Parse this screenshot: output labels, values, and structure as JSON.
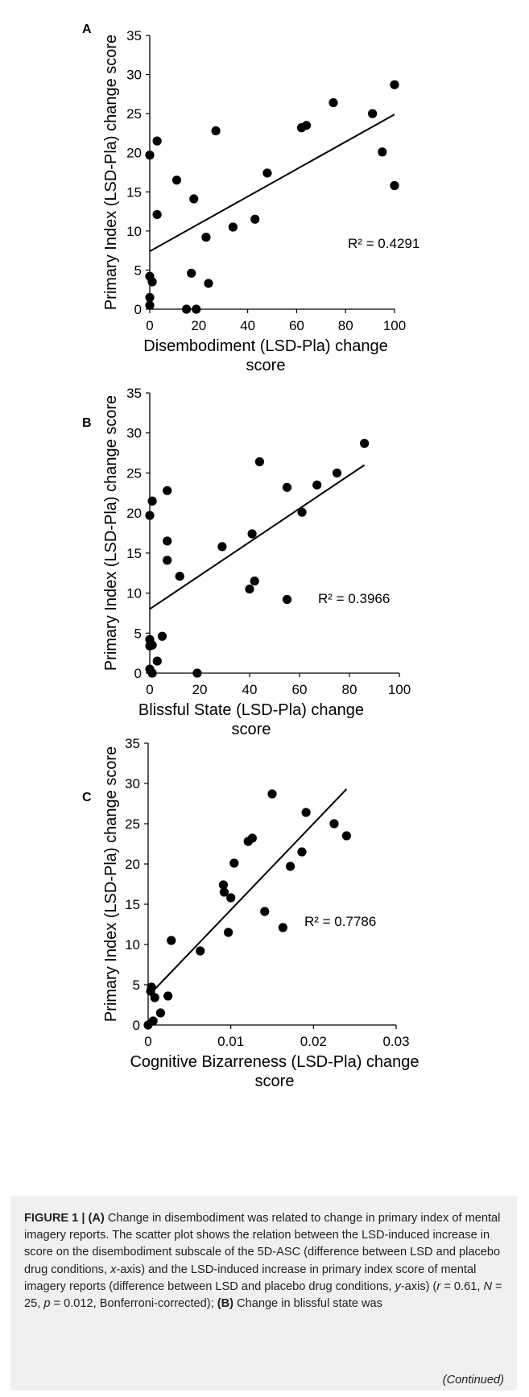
{
  "chart_data": [
    {
      "panel": "A",
      "type": "scatter",
      "xlabel": "Disembodiment (LSD-Pla) change score",
      "ylabel": "Primary Index (LSD-Pla) change score",
      "xlim": [
        0,
        100
      ],
      "ylim": [
        0,
        35
      ],
      "xticks": [
        "0",
        "20",
        "40",
        "60",
        "80",
        "100"
      ],
      "yticks": [
        "0",
        "5",
        "10",
        "15",
        "20",
        "25",
        "30",
        "35"
      ],
      "trendline": {
        "x": [
          0,
          100
        ],
        "y": [
          7.4,
          24.9
        ]
      },
      "r2_label": "R² = 0.4291",
      "points": [
        {
          "x": 0,
          "y": 19.7
        },
        {
          "x": 0,
          "y": 4.2
        },
        {
          "x": 0,
          "y": 1.5
        },
        {
          "x": 0,
          "y": 0.5
        },
        {
          "x": 1,
          "y": 3.5
        },
        {
          "x": 3,
          "y": 21.5
        },
        {
          "x": 3,
          "y": 12.1
        },
        {
          "x": 11,
          "y": 16.5
        },
        {
          "x": 15,
          "y": 0
        },
        {
          "x": 17,
          "y": 4.6
        },
        {
          "x": 18,
          "y": 14.1
        },
        {
          "x": 19,
          "y": 0
        },
        {
          "x": 23,
          "y": 9.2
        },
        {
          "x": 24,
          "y": 3.3
        },
        {
          "x": 27,
          "y": 22.8
        },
        {
          "x": 34,
          "y": 10.5
        },
        {
          "x": 43,
          "y": 11.5
        },
        {
          "x": 48,
          "y": 17.4
        },
        {
          "x": 62,
          "y": 23.2
        },
        {
          "x": 64,
          "y": 23.5
        },
        {
          "x": 75,
          "y": 26.4
        },
        {
          "x": 91,
          "y": 25.0
        },
        {
          "x": 95,
          "y": 20.1
        },
        {
          "x": 100,
          "y": 28.7
        },
        {
          "x": 100,
          "y": 15.8
        }
      ]
    },
    {
      "panel": "B",
      "type": "scatter",
      "xlabel": "Blissful State (LSD-Pla) change score",
      "ylabel": "Primary Index (LSD-Pla) change score",
      "xlim": [
        0,
        100
      ],
      "ylim": [
        0,
        35
      ],
      "xticks": [
        "0",
        "20",
        "40",
        "60",
        "80",
        "100"
      ],
      "yticks": [
        "0",
        "5",
        "10",
        "15",
        "20",
        "25",
        "30",
        "35"
      ],
      "trendline": {
        "x": [
          0,
          86
        ],
        "y": [
          8.0,
          26.0
        ]
      },
      "r2_label": "R² = 0.3966",
      "points": [
        {
          "x": 0,
          "y": 19.7
        },
        {
          "x": 0,
          "y": 4.2
        },
        {
          "x": 0,
          "y": 3.4
        },
        {
          "x": 0,
          "y": 0.5
        },
        {
          "x": 1,
          "y": 0
        },
        {
          "x": 1,
          "y": 3.5
        },
        {
          "x": 1,
          "y": 21.5
        },
        {
          "x": 3,
          "y": 1.5
        },
        {
          "x": 5,
          "y": 4.6
        },
        {
          "x": 7,
          "y": 22.8
        },
        {
          "x": 7,
          "y": 16.5
        },
        {
          "x": 7,
          "y": 14.1
        },
        {
          "x": 12,
          "y": 12.1
        },
        {
          "x": 19,
          "y": 0
        },
        {
          "x": 29,
          "y": 15.8
        },
        {
          "x": 40,
          "y": 10.5
        },
        {
          "x": 41,
          "y": 17.4
        },
        {
          "x": 42,
          "y": 11.5
        },
        {
          "x": 44,
          "y": 26.4
        },
        {
          "x": 55,
          "y": 23.2
        },
        {
          "x": 55,
          "y": 9.2
        },
        {
          "x": 61,
          "y": 20.1
        },
        {
          "x": 67,
          "y": 23.5
        },
        {
          "x": 75,
          "y": 25.0
        },
        {
          "x": 86,
          "y": 28.7
        }
      ]
    },
    {
      "panel": "C",
      "type": "scatter",
      "xlabel": "Cognitive Bizarreness (LSD-Pla) change score",
      "ylabel": "Primary Index (LSD-Pla) change score",
      "xlim": [
        0,
        0.03
      ],
      "ylim": [
        0,
        35
      ],
      "xticks": [
        "0",
        "0.01",
        "0.02",
        "0.03"
      ],
      "yticks": [
        "0",
        "5",
        "10",
        "15",
        "20",
        "25",
        "30",
        "35"
      ],
      "trendline": {
        "x": [
          0.0002,
          0.024
        ],
        "y": [
          3.8,
          29.3
        ]
      },
      "r2_label": "R² = 0.7786",
      "points": [
        {
          "x": 0.0,
          "y": 0
        },
        {
          "x": 0.0003,
          "y": 4.2
        },
        {
          "x": 0.0004,
          "y": 4.7
        },
        {
          "x": 0.0006,
          "y": 0.5
        },
        {
          "x": 0.0008,
          "y": 3.4
        },
        {
          "x": 0.0015,
          "y": 1.5
        },
        {
          "x": 0.0024,
          "y": 3.6
        },
        {
          "x": 0.0028,
          "y": 10.5
        },
        {
          "x": 0.0063,
          "y": 9.2
        },
        {
          "x": 0.0091,
          "y": 17.4
        },
        {
          "x": 0.0092,
          "y": 16.5
        },
        {
          "x": 0.0097,
          "y": 11.5
        },
        {
          "x": 0.01,
          "y": 15.8
        },
        {
          "x": 0.0104,
          "y": 20.1
        },
        {
          "x": 0.0121,
          "y": 22.8
        },
        {
          "x": 0.0126,
          "y": 23.2
        },
        {
          "x": 0.0141,
          "y": 14.1
        },
        {
          "x": 0.015,
          "y": 28.7
        },
        {
          "x": 0.0163,
          "y": 12.1
        },
        {
          "x": 0.0172,
          "y": 19.7
        },
        {
          "x": 0.0186,
          "y": 21.5
        },
        {
          "x": 0.0191,
          "y": 26.4
        },
        {
          "x": 0.0225,
          "y": 25.0
        },
        {
          "x": 0.024,
          "y": 23.5
        }
      ]
    }
  ],
  "caption": {
    "label": "FIGURE 1 |",
    "seg_a": "(A)",
    "text_a": " Change in disembodiment was related to change in primary index of mental imagery reports. The scatter plot shows the relation between the LSD-induced increase in score on the disembodiment subscale of the 5D-ASC (difference between LSD and placebo drug conditions, ",
    "x_axis_word": "x",
    "text_b": "-axis) and the LSD-induced increase in primary index score of mental imagery reports (difference between LSD and placebo drug conditions, ",
    "y_axis_word": "y",
    "text_c": "-axis) (",
    "r_sym": "r",
    "r_val": " = 0.61,",
    "n_sym": "N",
    "n_val": " = 25, ",
    "p_sym": "p",
    "p_val": " = 0.012, Bonferroni-corrected); ",
    "seg_b": "(B)",
    "text_d": " Change in blissful state was",
    "continued": "(Continued)"
  }
}
